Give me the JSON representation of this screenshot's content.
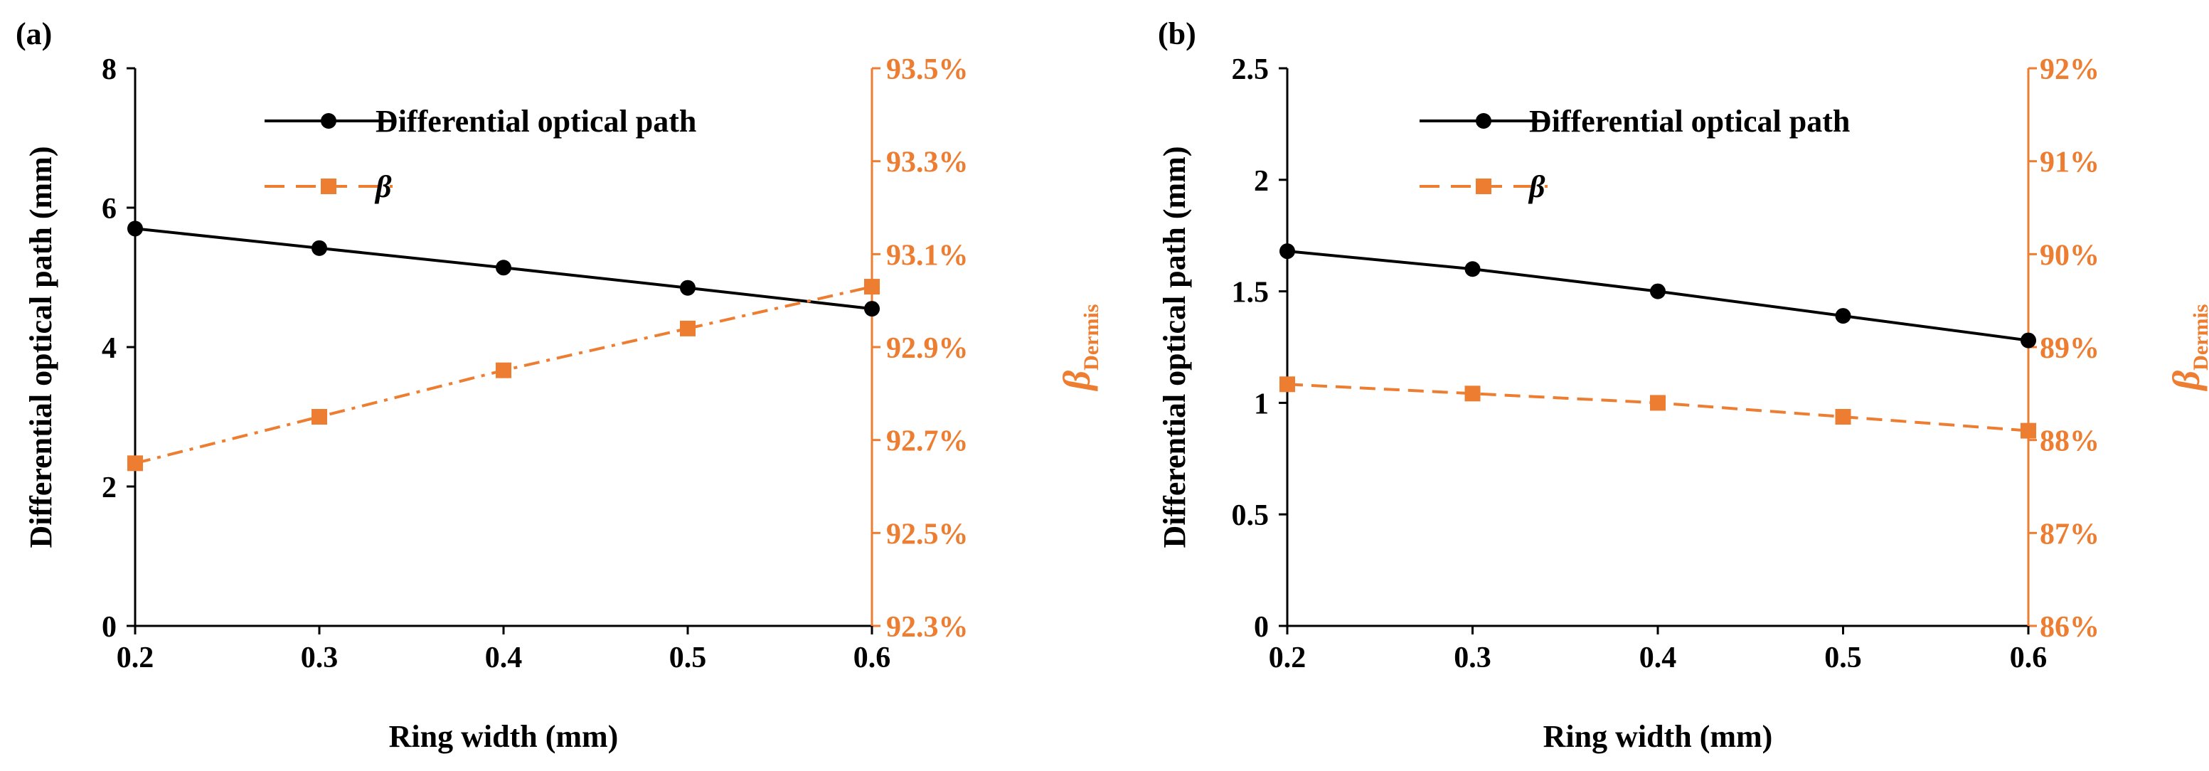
{
  "figure": {
    "colors": {
      "primary": "#000000",
      "secondary": "#ED7D31"
    }
  },
  "chart_data": [
    {
      "panel_label": "(a)",
      "type": "line",
      "title": "",
      "xlabel": "Ring width (mm)",
      "ylabel": "Differential optical path (mm)",
      "y2label": "β",
      "y2label_subscript": "Dermis",
      "x": [
        0.2,
        0.3,
        0.4,
        0.5,
        0.6
      ],
      "x_ticks": [
        "0.2",
        "0.3",
        "0.4",
        "0.5",
        "0.6"
      ],
      "xlim": [
        0.2,
        0.6
      ],
      "ylim": [
        0,
        8
      ],
      "y_ticks": [
        "0",
        "2",
        "4",
        "6",
        "8"
      ],
      "y2lim": [
        92.3,
        93.5
      ],
      "y2_ticks": [
        "92.3%",
        "92.5%",
        "92.7%",
        "92.9%",
        "93.1%",
        "93.3%",
        "93.5%"
      ],
      "legend_position": "top-center",
      "series": [
        {
          "name": "Differential optical path",
          "axis": "left",
          "marker": "circle",
          "line": "solid",
          "color": "#000000",
          "values": [
            5.7,
            5.42,
            5.14,
            4.85,
            4.55
          ]
        },
        {
          "name": "β",
          "axis": "right",
          "marker": "square",
          "line": "dash-dot",
          "color": "#ED7D31",
          "values": [
            92.65,
            92.75,
            92.85,
            92.94,
            93.03
          ]
        }
      ]
    },
    {
      "panel_label": "(b)",
      "type": "line",
      "title": "",
      "xlabel": "Ring width (mm)",
      "ylabel": "Differential optical path (mm)",
      "y2label": "β",
      "y2label_subscript": "Dermis",
      "x": [
        0.2,
        0.3,
        0.4,
        0.5,
        0.6
      ],
      "x_ticks": [
        "0.2",
        "0.3",
        "0.4",
        "0.5",
        "0.6"
      ],
      "xlim": [
        0.2,
        0.6
      ],
      "ylim": [
        0,
        2.5
      ],
      "y_ticks": [
        "0",
        "0.5",
        "1",
        "1.5",
        "2",
        "2.5"
      ],
      "y2lim": [
        86,
        92
      ],
      "y2_ticks": [
        "86%",
        "87%",
        "88%",
        "89%",
        "90%",
        "91%",
        "92%"
      ],
      "legend_position": "top-center",
      "series": [
        {
          "name": "Differential optical path",
          "axis": "left",
          "marker": "circle",
          "line": "solid",
          "color": "#000000",
          "values": [
            1.68,
            1.6,
            1.5,
            1.39,
            1.28
          ]
        },
        {
          "name": "β",
          "axis": "right",
          "marker": "square",
          "line": "dashed",
          "color": "#ED7D31",
          "values": [
            88.6,
            88.5,
            88.4,
            88.25,
            88.1
          ]
        }
      ]
    }
  ]
}
